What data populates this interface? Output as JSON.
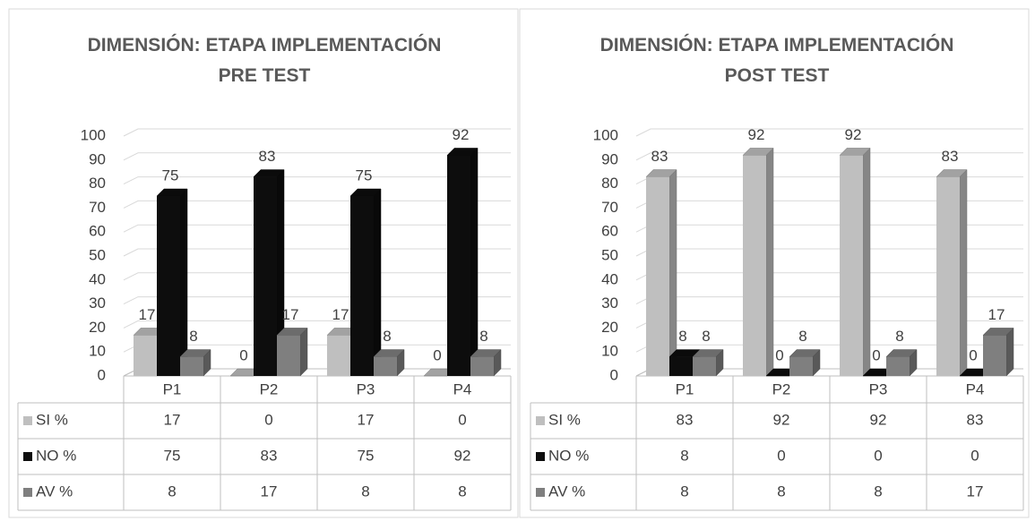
{
  "chart_data": [
    {
      "type": "bar",
      "title": "DIMENSIÓN: ETAPA IMPLEMENTACIÓN PRE TEST",
      "categories": [
        "P1",
        "P2",
        "P3",
        "P4"
      ],
      "series": [
        {
          "name": "SI %",
          "color": "#bfbfbf",
          "values": [
            17,
            0,
            17,
            0
          ]
        },
        {
          "name": "NO %",
          "color": "#0d0d0d",
          "values": [
            75,
            83,
            75,
            92
          ]
        },
        {
          "name": "AV %",
          "color": "#7f7f7f",
          "values": [
            8,
            17,
            8,
            8
          ]
        }
      ],
      "ylim": [
        0,
        100
      ],
      "yticks": [
        0,
        10,
        20,
        30,
        40,
        50,
        60,
        70,
        80,
        90,
        100
      ],
      "grid": true
    },
    {
      "type": "bar",
      "title": "DIMENSIÓN: ETAPA IMPLEMENTACIÓN POST TEST",
      "categories": [
        "P1",
        "P2",
        "P3",
        "P4"
      ],
      "series": [
        {
          "name": "SI %",
          "color": "#bfbfbf",
          "values": [
            83,
            92,
            92,
            83
          ]
        },
        {
          "name": "NO %",
          "color": "#0d0d0d",
          "values": [
            8,
            0,
            0,
            0
          ]
        },
        {
          "name": "AV %",
          "color": "#7f7f7f",
          "values": [
            8,
            8,
            8,
            17
          ]
        }
      ],
      "ylim": [
        0,
        100
      ],
      "yticks": [
        0,
        10,
        20,
        30,
        40,
        50,
        60,
        70,
        80,
        90,
        100
      ],
      "grid": true
    }
  ]
}
